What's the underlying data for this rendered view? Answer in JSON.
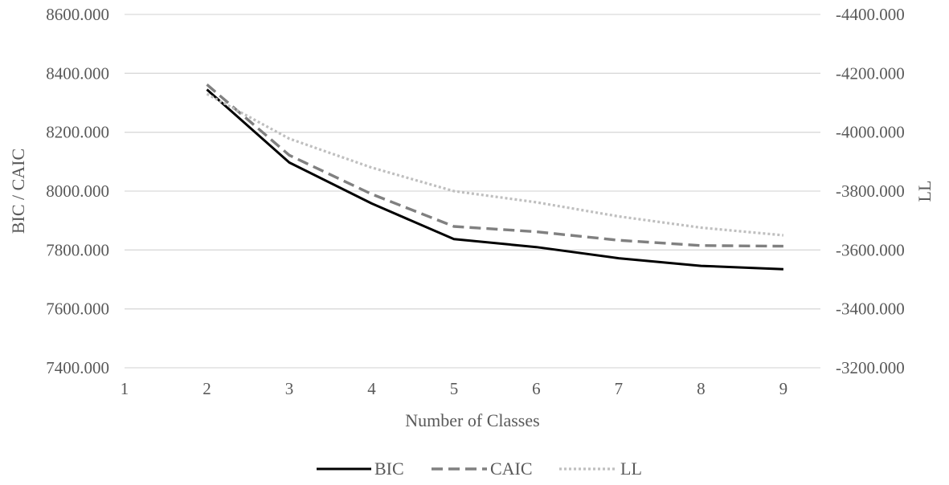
{
  "chart_data": {
    "type": "line",
    "xlabel": "Number of Classes",
    "ylabel": "BIC / CAIC",
    "y2label": "LL",
    "x_categories": [
      "1",
      "2",
      "3",
      "4",
      "5",
      "6",
      "7",
      "8",
      "9"
    ],
    "ylim": [
      7400,
      8600
    ],
    "y2lim": [
      -3200,
      -4400
    ],
    "y_ticks": [
      "7400.000",
      "7600.000",
      "7800.000",
      "8000.000",
      "8200.000",
      "8400.000",
      "8600.000"
    ],
    "y2_ticks": [
      "-3200.000",
      "-3400.000",
      "-3600.000",
      "-3800.000",
      "-4000.000",
      "-4200.000",
      "-4400.000"
    ],
    "grid": true,
    "legend_position": "bottom",
    "series": [
      {
        "name": "BIC",
        "axis": "left",
        "style": "solid",
        "color": "#000000",
        "x": [
          2,
          3,
          4,
          5,
          6,
          7,
          8,
          9
        ],
        "values": [
          8345,
          8097,
          7958,
          7837,
          7810,
          7772,
          7746,
          7735
        ]
      },
      {
        "name": "CAIC",
        "axis": "left",
        "style": "dashed",
        "color": "#808080",
        "x": [
          2,
          3,
          4,
          5,
          6,
          7,
          8,
          9
        ],
        "values": [
          8362,
          8122,
          7990,
          7880,
          7862,
          7833,
          7815,
          7813
        ]
      },
      {
        "name": "LL",
        "axis": "right",
        "style": "dotted",
        "color": "#bfbfbf",
        "x": [
          2,
          3,
          4,
          5,
          6,
          7,
          8,
          9
        ],
        "values": [
          -4130,
          -3978,
          -3880,
          -3800,
          -3762,
          -3714,
          -3676,
          -3650
        ]
      }
    ]
  }
}
